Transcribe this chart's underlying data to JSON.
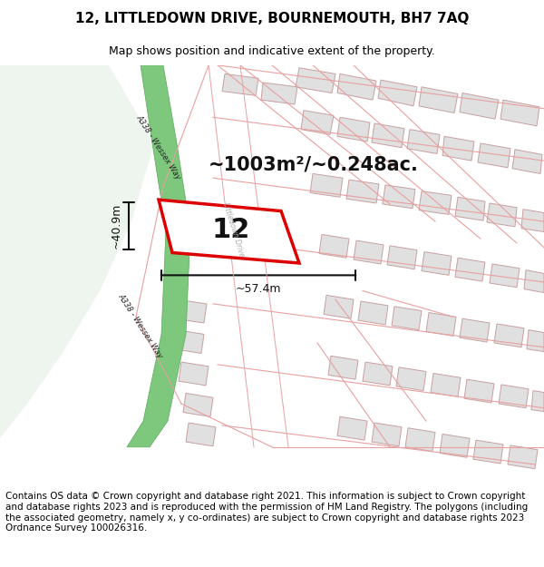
{
  "title": "12, LITTLEDOWN DRIVE, BOURNEMOUTH, BH7 7AQ",
  "subtitle": "Map shows position and indicative extent of the property.",
  "footer": "Contains OS data © Crown copyright and database right 2021. This information is subject to Crown copyright and database rights 2023 and is reproduced with the permission of HM Land Registry. The polygons (including the associated geometry, namely x, y co-ordinates) are subject to Crown copyright and database rights 2023 Ordnance Survey 100026316.",
  "area_label": "~1003m²/~0.248ac.",
  "width_label": "~57.4m",
  "height_label": "~40.9m",
  "plot_number": "12",
  "map_bg": "#ffffff",
  "open_space_color": "#eef4ee",
  "green_road_color": "#7dc87d",
  "green_road_edge": "#5aaa5a",
  "building_fill": "#e0e0e0",
  "building_edge": "#c8a0a0",
  "road_line_color": "#e8a0a0",
  "plot_outline_color": "#dd0000",
  "plot_fill_color": "#ffffff",
  "dim_line_color": "#111111",
  "road_label_color": "#555555",
  "title_fontsize": 11,
  "subtitle_fontsize": 9,
  "footer_fontsize": 7.5,
  "area_fontsize": 15,
  "plot_num_fontsize": 22
}
